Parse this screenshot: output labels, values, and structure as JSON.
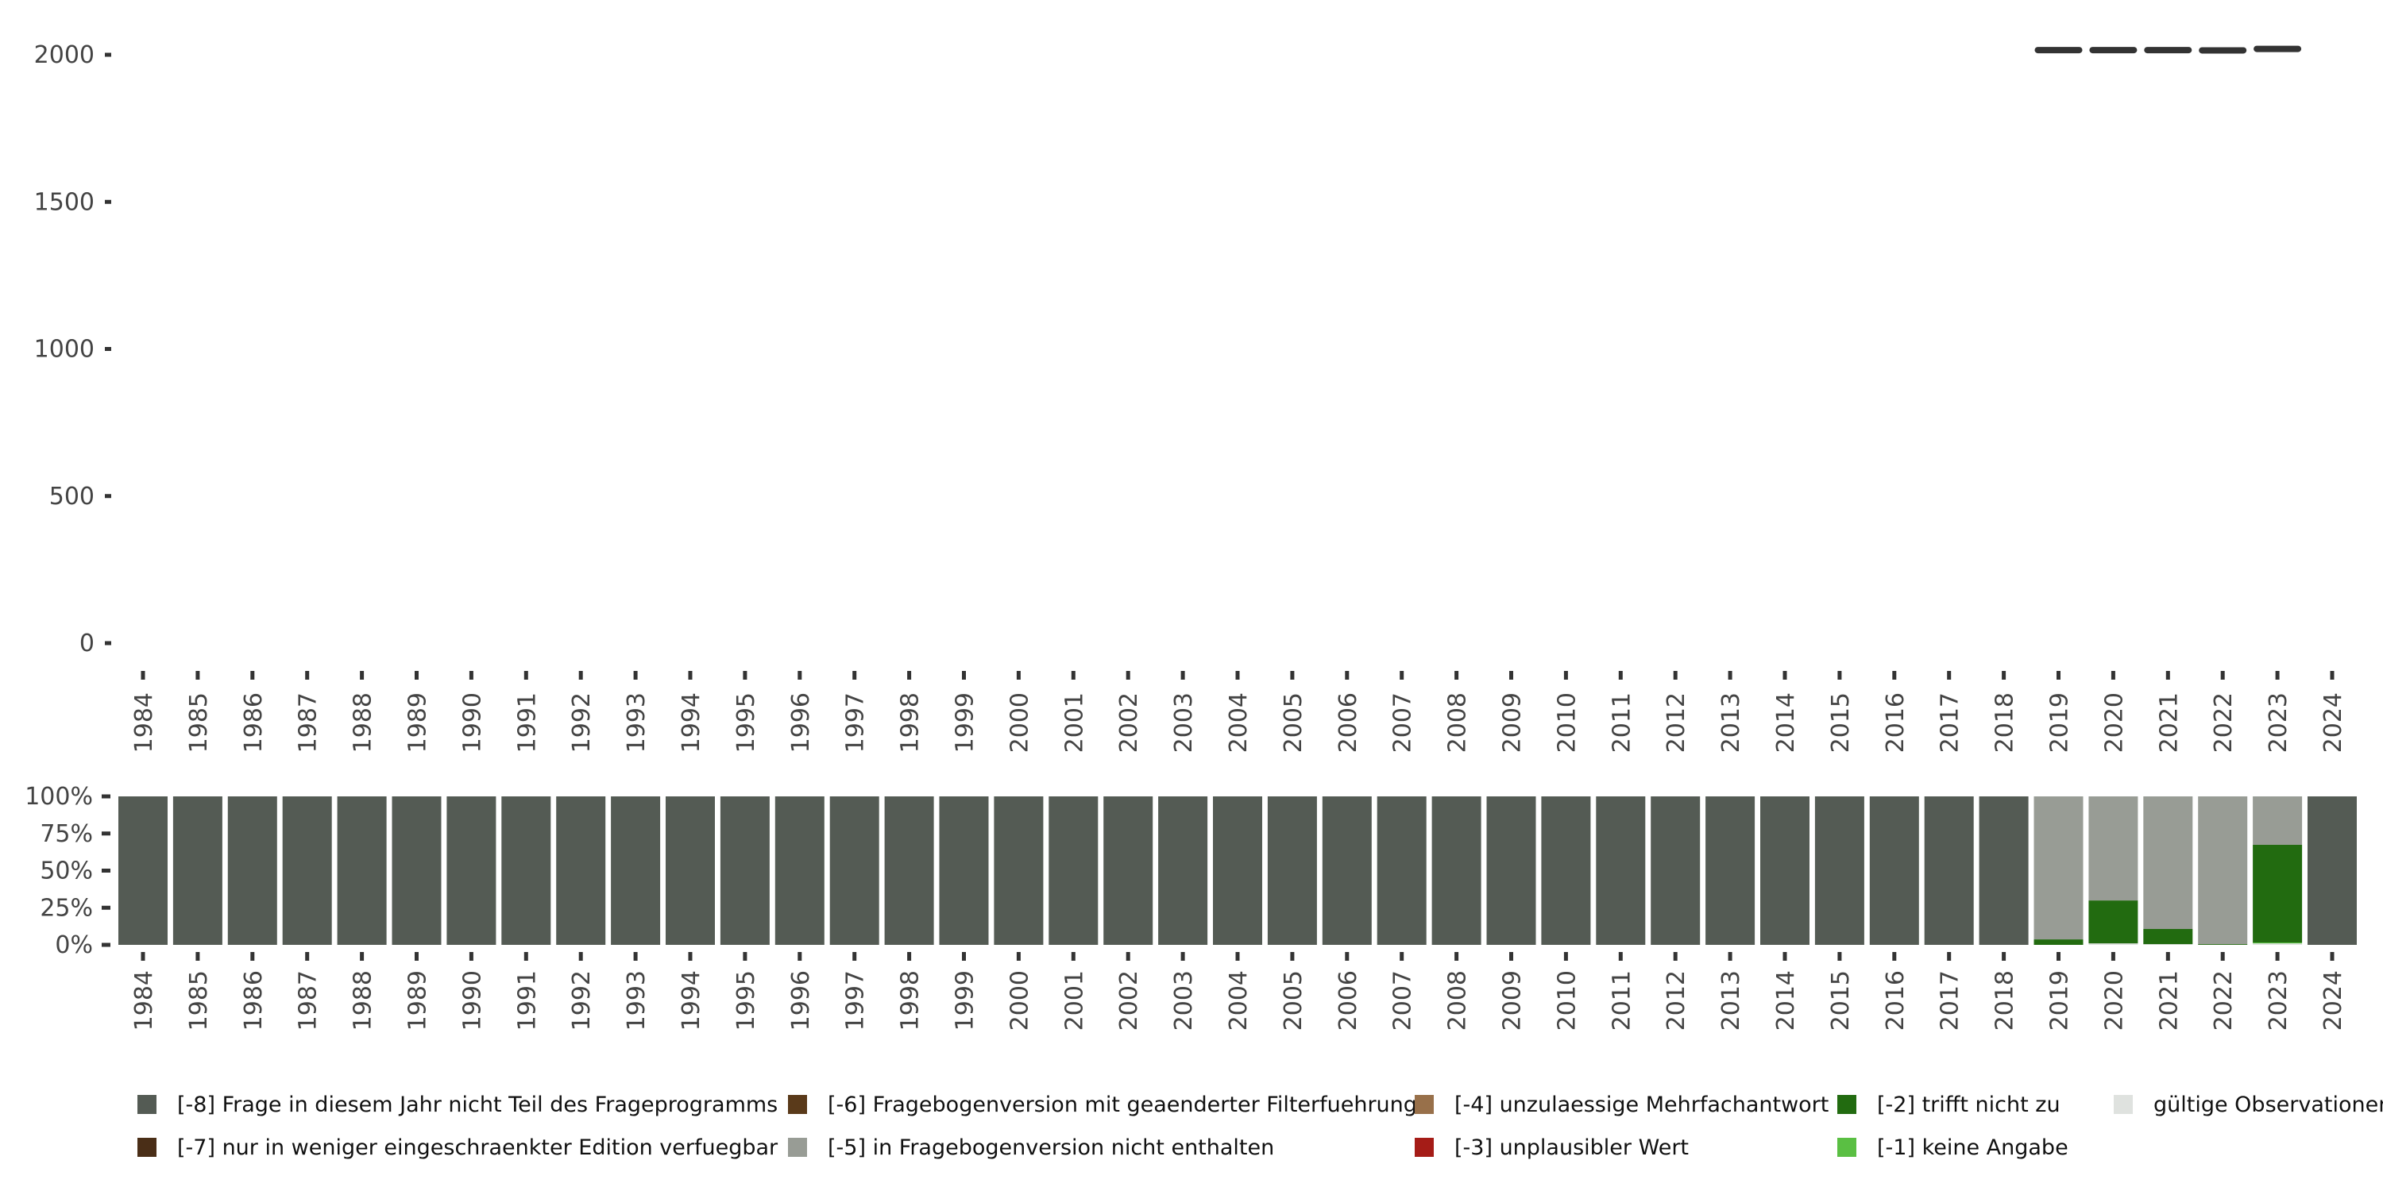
{
  "chart_data": [
    {
      "type": "line",
      "panel": "top",
      "title": "",
      "xlabel": "",
      "ylabel": "",
      "ylim": [
        0,
        2000
      ],
      "yticks": [
        "0",
        "500",
        "1000",
        "1500",
        "2000"
      ],
      "ytick_values": [
        0,
        500,
        1000,
        1500,
        2000
      ],
      "x": [
        "1984",
        "1985",
        "1986",
        "1987",
        "1988",
        "1989",
        "1990",
        "1991",
        "1992",
        "1993",
        "1994",
        "1995",
        "1996",
        "1997",
        "1998",
        "1999",
        "2000",
        "2001",
        "2002",
        "2003",
        "2004",
        "2005",
        "2006",
        "2007",
        "2008",
        "2009",
        "2010",
        "2011",
        "2012",
        "2013",
        "2014",
        "2015",
        "2016",
        "2017",
        "2018",
        "2019",
        "2020",
        "2021",
        "2022",
        "2023",
        "2024"
      ],
      "points": [
        {
          "x": "2019",
          "y": 2016
        },
        {
          "x": "2020",
          "y": 2016
        },
        {
          "x": "2021",
          "y": 2016
        },
        {
          "x": "2022",
          "y": 2015
        },
        {
          "x": "2023",
          "y": 2020
        }
      ],
      "color": "#333333"
    },
    {
      "type": "bar",
      "stacked": true,
      "panel": "bottom",
      "ylim": [
        0,
        1
      ],
      "yticks": [
        "0%",
        "25%",
        "50%",
        "75%",
        "100%"
      ],
      "ytick_values": [
        0,
        0.25,
        0.5,
        0.75,
        1
      ],
      "categories": [
        "1984",
        "1985",
        "1986",
        "1987",
        "1988",
        "1989",
        "1990",
        "1991",
        "1992",
        "1993",
        "1994",
        "1995",
        "1996",
        "1997",
        "1998",
        "1999",
        "2000",
        "2001",
        "2002",
        "2003",
        "2004",
        "2005",
        "2006",
        "2007",
        "2008",
        "2009",
        "2010",
        "2011",
        "2012",
        "2013",
        "2014",
        "2015",
        "2016",
        "2017",
        "2018",
        "2019",
        "2020",
        "2021",
        "2022",
        "2023",
        "2024"
      ],
      "series": [
        {
          "name": "gültige Observationen",
          "color": "#dfe2df",
          "special": {
            "2020": 0.01,
            "2021": 0.005,
            "2023": 0.01
          }
        },
        {
          "name": "[-1] keine Angabe",
          "color": "#5abf43",
          "special": {
            "2023": 0.006
          }
        },
        {
          "name": "[-2] trifft nicht zu",
          "color": "#226b10",
          "special": {
            "2019": 0.037,
            "2020": 0.289,
            "2021": 0.102,
            "2022": 0.005,
            "2023": 0.658
          }
        },
        {
          "name": "[-5] in Fragebogenversion nicht enthalten",
          "color": "#989c95",
          "special": {
            "2019": 0.963,
            "2020": 0.701,
            "2021": 0.893,
            "2022": 0.995,
            "2023": 0.326
          }
        },
        {
          "name": "[-8] Frage in diesem Jahr nicht Teil des Frageprogramms",
          "color": "#545b54",
          "default": 1
        }
      ]
    }
  ],
  "legend": {
    "placement": "bottom",
    "items": [
      {
        "label": "[-8] Frage in diesem Jahr nicht Teil des Frageprogramms",
        "color": "#545b54"
      },
      {
        "label": "[-7] nur in weniger eingeschraenkter Edition verfuegbar",
        "color": "#4a2e17"
      },
      {
        "label": "[-6] Fragebogenversion mit geaenderter Filterfuehrung",
        "color": "#5a3a1a"
      },
      {
        "label": "[-5] in Fragebogenversion nicht enthalten",
        "color": "#989c95"
      },
      {
        "label": "[-4] unzulaessige Mehrfachantwort",
        "color": "#98704a"
      },
      {
        "label": "[-3] unplausibler Wert",
        "color": "#a51c17"
      },
      {
        "label": "[-2] trifft nicht zu",
        "color": "#226b10"
      },
      {
        "label": "[-1] keine Angabe",
        "color": "#5abf43"
      },
      {
        "label": "gültige Observationen",
        "color": "#dfe2df"
      }
    ]
  }
}
